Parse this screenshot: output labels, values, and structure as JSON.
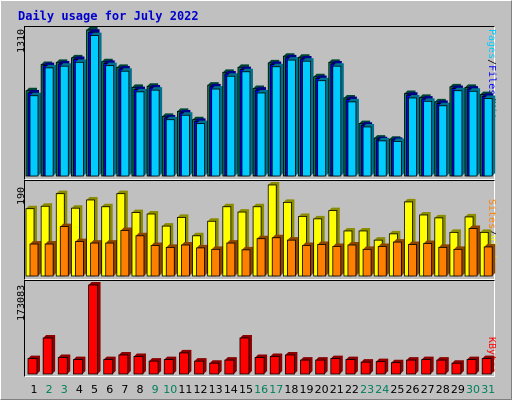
{
  "title": "Daily usage for July 2022",
  "colors": {
    "hits": "#00805c",
    "files": "#0000ff",
    "pages": "#00ccff",
    "visits": "#ffff00",
    "sites": "#ff8000",
    "kbytes": "#ff0000",
    "weekday": "#000000",
    "weekend": "#00805c"
  },
  "chart_data": [
    {
      "type": "bar",
      "ylabel_max": "1310",
      "legend": [
        "Pages",
        "Files",
        "Hits"
      ],
      "ylim": [
        0,
        1310
      ],
      "categories": [
        "1",
        "2",
        "3",
        "4",
        "5",
        "6",
        "7",
        "8",
        "9",
        "10",
        "11",
        "12",
        "13",
        "14",
        "15",
        "16",
        "17",
        "18",
        "19",
        "20",
        "21",
        "22",
        "23",
        "24",
        "25",
        "26",
        "27",
        "28",
        "29",
        "30",
        "31"
      ],
      "series": [
        {
          "name": "Hits",
          "values": [
            765,
            1000,
            1020,
            1060,
            1310,
            1025,
            975,
            795,
            805,
            535,
            580,
            505,
            815,
            930,
            975,
            785,
            1015,
            1075,
            1065,
            890,
            1020,
            700,
            470,
            340,
            330,
            740,
            705,
            665,
            800,
            795,
            730
          ]
        },
        {
          "name": "Files",
          "values": [
            745,
            990,
            1005,
            1045,
            1290,
            1010,
            960,
            775,
            790,
            520,
            565,
            490,
            800,
            915,
            955,
            770,
            1000,
            1060,
            1050,
            875,
            1005,
            685,
            455,
            325,
            320,
            725,
            690,
            650,
            785,
            780,
            715
          ]
        },
        {
          "name": "Pages",
          "values": [
            720,
            970,
            985,
            1020,
            1260,
            990,
            940,
            755,
            770,
            505,
            545,
            470,
            780,
            895,
            935,
            745,
            980,
            1040,
            1030,
            855,
            985,
            665,
            440,
            315,
            310,
            700,
            670,
            630,
            765,
            760,
            695
          ]
        }
      ]
    },
    {
      "type": "bar",
      "ylabel_max": "190",
      "legend": [
        "Sites",
        "Visits"
      ],
      "ylim": [
        0,
        190
      ],
      "categories": [
        "1",
        "2",
        "3",
        "4",
        "5",
        "6",
        "7",
        "8",
        "9",
        "10",
        "11",
        "12",
        "13",
        "14",
        "15",
        "16",
        "17",
        "18",
        "19",
        "20",
        "21",
        "22",
        "23",
        "24",
        "25",
        "26",
        "27",
        "28",
        "29",
        "30",
        "31"
      ],
      "series": [
        {
          "name": "Visits",
          "values": [
            139,
            144,
            170,
            140,
            157,
            143,
            170,
            131,
            128,
            103,
            121,
            83,
            113,
            143,
            132,
            143,
            188,
            152,
            123,
            118,
            135,
            93,
            93,
            74,
            87,
            153,
            126,
            120,
            90,
            122,
            90
          ]
        },
        {
          "name": "Sites",
          "values": [
            66,
            66,
            102,
            71,
            68,
            68,
            94,
            83,
            63,
            59,
            64,
            58,
            55,
            68,
            54,
            77,
            79,
            74,
            63,
            65,
            61,
            64,
            55,
            61,
            70,
            65,
            67,
            59,
            55,
            98,
            60
          ]
        }
      ]
    },
    {
      "type": "bar",
      "ylabel_max": "173083",
      "legend": [
        "KBytes"
      ],
      "ylim": [
        0,
        173083
      ],
      "categories": [
        "1",
        "2",
        "3",
        "4",
        "5",
        "6",
        "7",
        "8",
        "9",
        "10",
        "11",
        "12",
        "13",
        "14",
        "15",
        "16",
        "17",
        "18",
        "19",
        "20",
        "21",
        "22",
        "23",
        "24",
        "25",
        "26",
        "27",
        "28",
        "29",
        "30",
        "31"
      ],
      "series": [
        {
          "name": "KBytes",
          "values": [
            30000,
            70000,
            32000,
            28000,
            173083,
            28000,
            37000,
            34000,
            25000,
            28000,
            41000,
            25000,
            21000,
            27000,
            70000,
            32000,
            34000,
            37000,
            27000,
            27000,
            30000,
            28000,
            23000,
            24000,
            22000,
            27000,
            28000,
            27000,
            21000,
            28000,
            30000
          ]
        }
      ]
    }
  ]
}
